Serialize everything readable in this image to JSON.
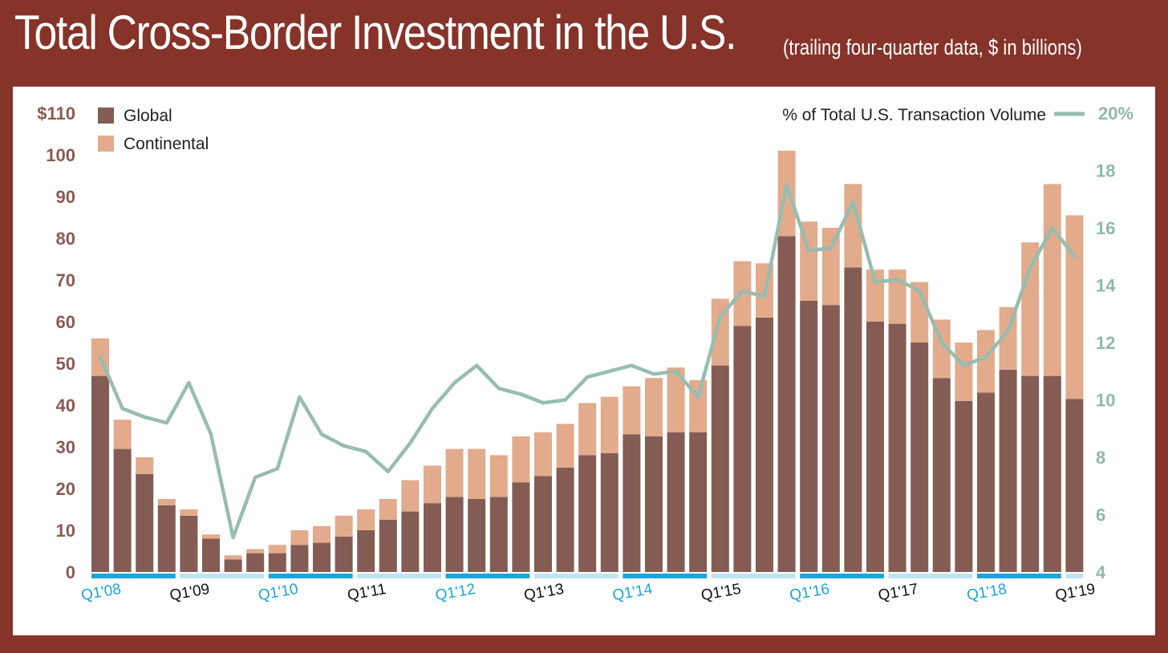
{
  "title": {
    "main": "Total Cross-Border Investment in the U.S.",
    "subtitle": "(trailing four-quarter data, $ in billions)"
  },
  "colors": {
    "frame": "#86332a",
    "global": "#845c53",
    "continental": "#e2ab8c",
    "line": "#97bdb0",
    "left_axis": "#8a5b52",
    "right_axis": "#8fb8ab",
    "x_label_blue": "#1ba5d8",
    "x_label_black": "#111111",
    "band_dark": "#1ba5d8",
    "band_light": "#bfe3ef"
  },
  "chart_data": {
    "type": "bar",
    "stacked": true,
    "title": "Total Cross-Border Investment in the U.S.",
    "subtitle": "(trailing four-quarter data, $ in billions)",
    "y_left": {
      "ticks": [
        "$110",
        "100",
        "90",
        "80",
        "70",
        "60",
        "50",
        "40",
        "30",
        "20",
        "10",
        "0"
      ],
      "range": [
        0,
        110
      ]
    },
    "y_right": {
      "ticks": [
        "20%",
        "18",
        "16",
        "14",
        "12",
        "10",
        "8",
        "6",
        "4"
      ],
      "range": [
        4,
        20
      ]
    },
    "x_tick_labels": [
      "Q1'08",
      "Q1'09",
      "Q1'10",
      "Q1'11",
      "Q1'12",
      "Q1'13",
      "Q1'14",
      "Q1'15",
      "Q1'16",
      "Q1'17",
      "Q1'18",
      "Q1'19"
    ],
    "legend": {
      "global": "Global",
      "continental": "Continental",
      "line": "% of Total U.S. Transaction Volume"
    },
    "series": [
      {
        "name": "Global",
        "values": [
          47,
          29.5,
          23.5,
          16,
          13.5,
          8,
          3,
          4.5,
          4.5,
          6.5,
          7,
          8.5,
          10,
          12.5,
          14.5,
          16.5,
          18,
          17.5,
          18,
          21.5,
          23,
          25,
          28,
          28.5,
          33,
          32.5,
          33.5,
          33.5,
          49.5,
          59,
          61,
          80.5,
          65,
          64,
          73,
          60,
          59.5,
          55,
          46.5,
          41,
          43,
          48.5,
          47,
          47,
          41.5
        ]
      },
      {
        "name": "Continental",
        "values": [
          9,
          7,
          4,
          1.5,
          1.5,
          1,
          1,
          1,
          2,
          3.5,
          4,
          5,
          5,
          5,
          7.5,
          9,
          11.5,
          12,
          10,
          11,
          10.5,
          10.5,
          12.5,
          13.5,
          11.5,
          14,
          15.5,
          12.5,
          16,
          15.5,
          13,
          20.5,
          19,
          18.5,
          20,
          12.5,
          13,
          14.5,
          14,
          14,
          15,
          15,
          32,
          46,
          44
        ]
      },
      {
        "name": "% of Total U.S. Transaction Volume",
        "values": [
          11.5,
          9.7,
          9.4,
          9.2,
          10.6,
          8.8,
          5.2,
          7.3,
          7.6,
          10.1,
          8.8,
          8.4,
          8.2,
          7.5,
          8.5,
          9.7,
          10.6,
          11.2,
          10.4,
          10.2,
          9.9,
          10.0,
          10.8,
          11.0,
          11.2,
          10.9,
          11.0,
          10.1,
          12.9,
          13.8,
          13.6,
          17.5,
          15.2,
          15.3,
          16.9,
          14.1,
          14.2,
          13.8,
          12.0,
          11.2,
          11.5,
          12.4,
          14.6,
          16.0,
          15.0
        ]
      }
    ]
  }
}
